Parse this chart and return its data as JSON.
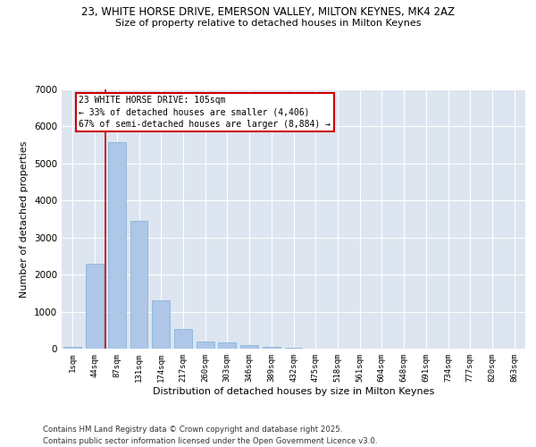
{
  "title_line1": "23, WHITE HORSE DRIVE, EMERSON VALLEY, MILTON KEYNES, MK4 2AZ",
  "title_line2": "Size of property relative to detached houses in Milton Keynes",
  "xlabel": "Distribution of detached houses by size in Milton Keynes",
  "ylabel": "Number of detached properties",
  "categories": [
    "1sqm",
    "44sqm",
    "87sqm",
    "131sqm",
    "174sqm",
    "217sqm",
    "260sqm",
    "303sqm",
    "346sqm",
    "389sqm",
    "432sqm",
    "475sqm",
    "518sqm",
    "561sqm",
    "604sqm",
    "648sqm",
    "691sqm",
    "734sqm",
    "777sqm",
    "820sqm",
    "863sqm"
  ],
  "values": [
    60,
    2300,
    5580,
    3450,
    1310,
    530,
    205,
    170,
    90,
    55,
    30,
    0,
    0,
    0,
    0,
    0,
    0,
    0,
    0,
    0,
    0
  ],
  "bar_color": "#aec6e8",
  "bar_edge_color": "#7aafd4",
  "vline_color": "#cc0000",
  "vline_bar_index": 2,
  "annotation_line1": "23 WHITE HORSE DRIVE: 105sqm",
  "annotation_line2": "← 33% of detached houses are smaller (4,406)",
  "annotation_line3": "67% of semi-detached houses are larger (8,884) →",
  "annotation_box_edgecolor": "#cc0000",
  "ylim": [
    0,
    7000
  ],
  "yticks": [
    0,
    1000,
    2000,
    3000,
    4000,
    5000,
    6000,
    7000
  ],
  "bg_color": "#dde5f0",
  "grid_color": "#ffffff",
  "footer_line1": "Contains HM Land Registry data © Crown copyright and database right 2025.",
  "footer_line2": "Contains public sector information licensed under the Open Government Licence v3.0."
}
